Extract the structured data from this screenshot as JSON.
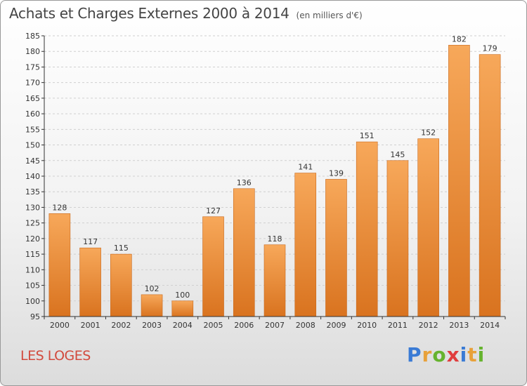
{
  "title": "Achats et Charges Externes 2000 à 2014",
  "subtitle": "(en milliers d'€)",
  "commune": "LES LOGES",
  "logo": {
    "text": "Proxiti",
    "letter_colors": [
      "#3a7bd5",
      "#e8a13a",
      "#66b32e",
      "#e03c3c",
      "#3a7bd5",
      "#e8a13a",
      "#66b32e"
    ]
  },
  "colors": {
    "bar_light": "#f7a85a",
    "bar_dark": "#d9731f",
    "bar_edge": "#c8681c",
    "axis": "#333333",
    "grid": "#d0d0d0"
  },
  "chart_data": {
    "type": "bar",
    "categories": [
      "2000",
      "2001",
      "2002",
      "2003",
      "2004",
      "2005",
      "2006",
      "2007",
      "2008",
      "2009",
      "2010",
      "2011",
      "2012",
      "2013",
      "2014"
    ],
    "values": [
      128,
      117,
      115,
      102,
      100,
      127,
      136,
      118,
      141,
      139,
      151,
      145,
      152,
      182,
      179
    ],
    "ylim": [
      95,
      185
    ],
    "yticks": [
      95,
      100,
      105,
      110,
      115,
      120,
      125,
      130,
      135,
      140,
      145,
      150,
      155,
      160,
      165,
      170,
      175,
      180,
      185
    ],
    "grid": true
  }
}
